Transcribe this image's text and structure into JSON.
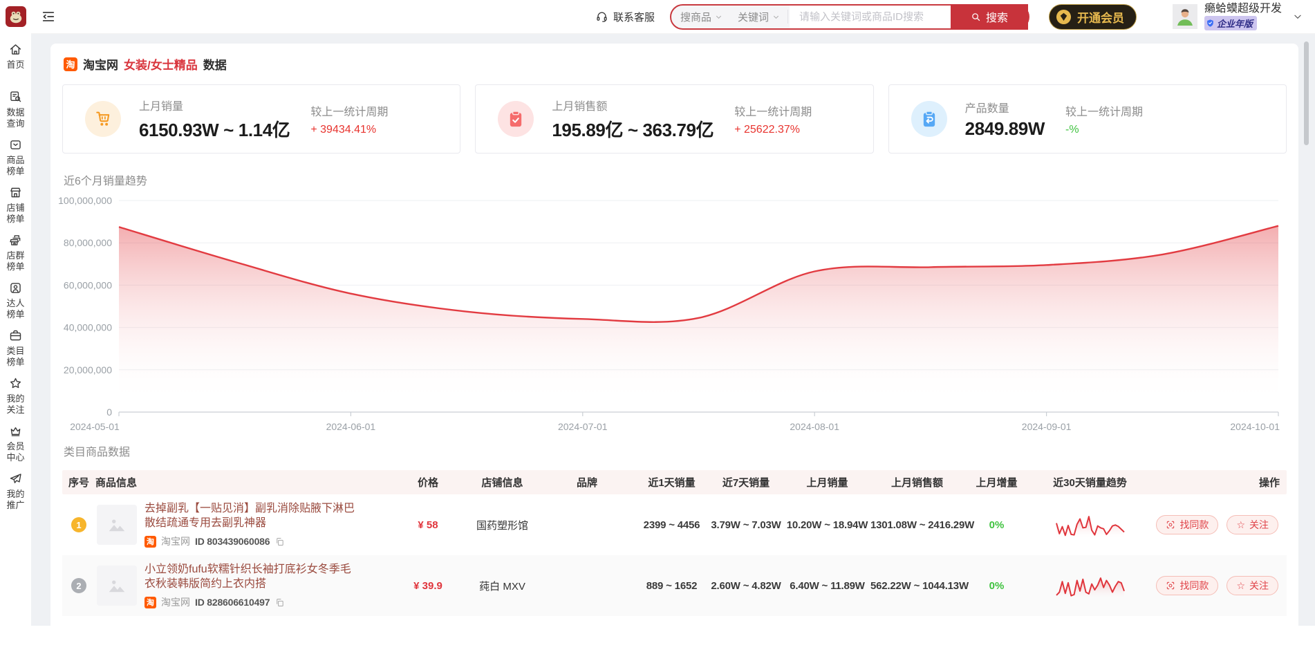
{
  "header": {
    "contact_label": "联系客服",
    "search": {
      "scope_label": "搜商品",
      "mode_label": "关键词",
      "placeholder": "请输入关键词或商品ID搜索",
      "button_label": "搜索"
    },
    "vip_button_label": "开通会员",
    "user": {
      "name": "癞蛤蟆超级开发",
      "badge": "企业年版"
    }
  },
  "sidebar": {
    "items": [
      {
        "label": "首页"
      },
      {
        "label": "数据查询"
      },
      {
        "label": "商品榜单"
      },
      {
        "label": "店铺榜单"
      },
      {
        "label": "店群榜单"
      },
      {
        "label": "达人榜单"
      },
      {
        "label": "类目榜单"
      },
      {
        "label": "我的关注"
      },
      {
        "label": "会员中心"
      },
      {
        "label": "我的推广"
      }
    ]
  },
  "breadcrumb": {
    "platform": "淘宝网",
    "category": "女装/女士精品",
    "suffix": "数据"
  },
  "stats": [
    {
      "label": "上月销量",
      "value": "6150.93W ~ 1.14亿",
      "compare_label": "较上一统计周期",
      "change": "+ 39434.41%",
      "change_color": "#e8332e",
      "icon": "cart-icon",
      "icon_color": "#f59a23",
      "icon_bg": "#fdf0dd"
    },
    {
      "label": "上月销售额",
      "value": "195.89亿 ~ 363.79亿",
      "compare_label": "较上一统计周期",
      "change": "+ 25622.37%",
      "change_color": "#e8332e",
      "icon": "clipboard-check-icon",
      "icon_color": "#f56c6c",
      "icon_bg": "#fde3e3"
    },
    {
      "label": "产品数量",
      "value": "2849.89W",
      "compare_label": "较上一统计周期",
      "change": "-%",
      "change_color": "#3fc23f",
      "icon": "clipboard-return-icon",
      "icon_color": "#56a8f5",
      "icon_bg": "#def0fd"
    }
  ],
  "chart_data": {
    "type": "area",
    "title": "近6个月销量趋势",
    "x_ticks": [
      "2024-05-01",
      "2024-06-01",
      "2024-07-01",
      "2024-08-01",
      "2024-09-01",
      "2024-10-01"
    ],
    "x": [
      "2024-05-01",
      "2024-05-16",
      "2024-06-01",
      "2024-06-16",
      "2024-07-01",
      "2024-07-16",
      "2024-08-01",
      "2024-08-16",
      "2024-09-01",
      "2024-09-16",
      "2024-10-01"
    ],
    "values": [
      87500000,
      71000000,
      56000000,
      47500000,
      44000000,
      44500000,
      66500000,
      68500000,
      69500000,
      74500000,
      88000000
    ],
    "ylim": [
      0,
      100000000
    ],
    "y_ticks": [
      0,
      20000000,
      40000000,
      60000000,
      80000000,
      100000000
    ],
    "y_tick_labels": [
      "0",
      "20,000,000",
      "40,000,000",
      "60,000,000",
      "80,000,000",
      "100,000,000"
    ],
    "line_color": "#e23b41",
    "grid": true,
    "legend": false
  },
  "table": {
    "section_title": "类目商品数据",
    "columns": [
      "序号",
      "商品信息",
      "价格",
      "店铺信息",
      "品牌",
      "近1天销量",
      "近7天销量",
      "上月销量",
      "上月销售额",
      "上月增量",
      "近30天销量趋势",
      "操作"
    ],
    "actions": {
      "find_same": "找同款",
      "follow": "关注"
    },
    "rows": [
      {
        "rank": "1",
        "rank_color": "#f7b52c",
        "title": "去掉副乳【一贴见消】副乳消除贴腋下淋巴散结疏通专用去副乳神器",
        "platform": "淘宝网",
        "product_id": "ID 803439060086",
        "price": "¥ 58",
        "store": "国药塑形馆",
        "brand": "",
        "sales_1d": "2399 ~ 4456",
        "sales_7d": "3.79W ~ 7.03W",
        "sales_month": "10.20W ~ 18.94W",
        "revenue_month": "1301.08W ~ 2416.29W",
        "growth": "0%",
        "growth_color": "#3fc23f",
        "trend": [
          60,
          15,
          45,
          8,
          50,
          12,
          10,
          55,
          78,
          40,
          42,
          88,
          30,
          10,
          48,
          40,
          36,
          12,
          28,
          48,
          52,
          46,
          34,
          22
        ]
      },
      {
        "rank": "2",
        "rank_color": "#abaeb3",
        "title": "小立领奶fufu软糯针织长袖打底衫女冬季毛衣秋装韩版简约上衣内搭",
        "platform": "淘宝网",
        "product_id": "ID 828606610497",
        "price": "¥ 39.9",
        "store": "莼白 MXV",
        "brand": "",
        "sales_1d": "889 ~ 1652",
        "sales_7d": "2.60W ~ 4.82W",
        "sales_month": "6.40W ~ 11.89W",
        "revenue_month": "562.22W ~ 1044.13W",
        "growth": "0%",
        "growth_color": "#3fc23f",
        "trend": [
          12,
          25,
          70,
          20,
          65,
          10,
          15,
          75,
          30,
          80,
          25,
          18,
          60,
          35,
          55,
          85,
          45,
          75,
          55,
          25,
          50,
          70,
          65,
          30
        ]
      }
    ]
  }
}
